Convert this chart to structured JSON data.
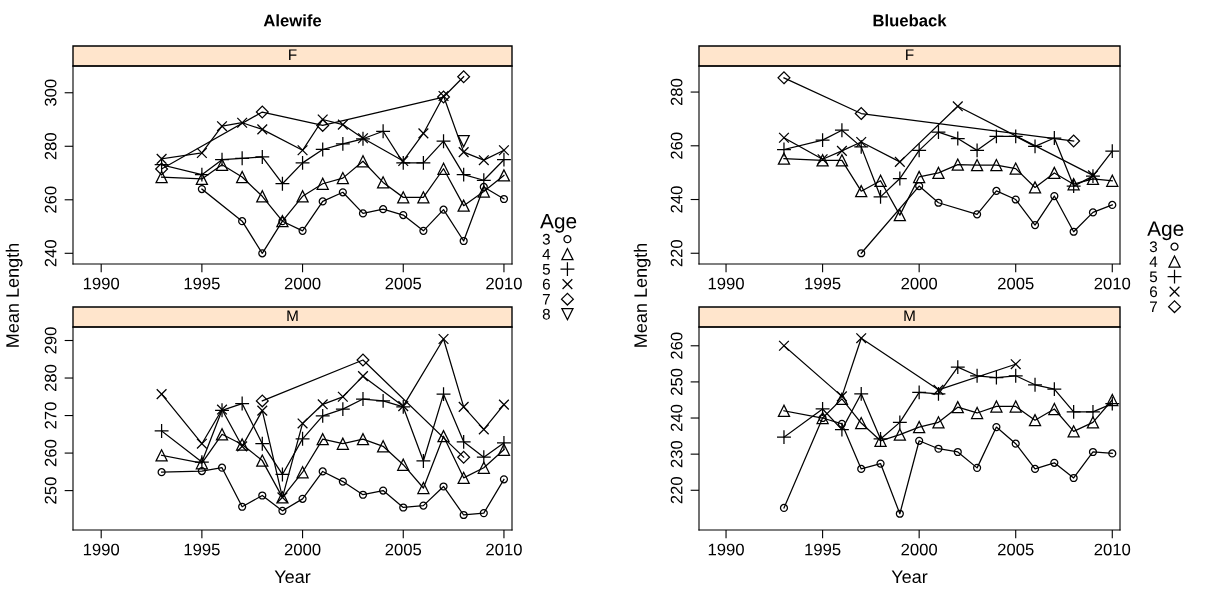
{
  "chart_data": [
    {
      "type": "line",
      "title": "Alewife",
      "subtitle": "F",
      "ylabel": "Mean Length",
      "legend_title": "Age",
      "legend": "right",
      "xlim": [
        1988.6,
        2010.4
      ],
      "xticks": [
        1990,
        1995,
        2000,
        2005,
        2010
      ],
      "ylim": [
        236,
        310
      ],
      "yticks": [
        240,
        260,
        280,
        300
      ],
      "grid": false,
      "series": [
        {
          "name": "3",
          "color": "#000000",
          "marker": "circle",
          "x": [
            1995,
            1997,
            1998,
            1999,
            2000,
            2001,
            2002,
            2003,
            2004,
            2005,
            2006,
            2007,
            2008,
            2009,
            2010
          ],
          "values": [
            264,
            252,
            240,
            252,
            248.4,
            259.4,
            262.8,
            254.9,
            256.5,
            254.3,
            248.4,
            256.3,
            244.6,
            264.8,
            260.3
          ]
        },
        {
          "name": "4",
          "color": "#000000",
          "marker": "triangle",
          "x": [
            1993,
            1995,
            1996,
            1997,
            1998,
            1999,
            2000,
            2001,
            2002,
            2003,
            2004,
            2005,
            2006,
            2007,
            2008,
            2009,
            2010
          ],
          "values": [
            268.5,
            267.8,
            273.1,
            268.5,
            261.3,
            252,
            261.3,
            266,
            268.1,
            274.4,
            266.5,
            260.9,
            260.9,
            271.6,
            257.8,
            263.1,
            269.1
          ]
        },
        {
          "name": "5",
          "color": "#000000",
          "marker": "plus",
          "x": [
            1993,
            1995,
            1996,
            1997,
            1998,
            1999,
            2000,
            2001,
            2002,
            2003,
            2004,
            2005,
            2006,
            2007,
            2008,
            2009,
            2010
          ],
          "values": [
            273.1,
            269.4,
            275,
            275.5,
            276,
            266,
            273.8,
            278.8,
            280.9,
            282.8,
            285.6,
            273.8,
            273.8,
            281.9,
            269.4,
            267.3,
            275
          ]
        },
        {
          "name": "6",
          "color": "#000000",
          "marker": "cross",
          "x": [
            1993,
            1995,
            1996,
            1997,
            1998,
            2000,
            2001,
            2002,
            2003,
            2005,
            2006,
            2007,
            2008,
            2009,
            2010
          ],
          "values": [
            275.3,
            277.5,
            287.5,
            288.8,
            286.3,
            278.5,
            290,
            288.1,
            283,
            274.5,
            284.8,
            298.8,
            277.8,
            274.8,
            278.5
          ]
        },
        {
          "name": "7",
          "color": "#000000",
          "marker": "diamond",
          "x": [
            1993,
            1998,
            2001,
            2007,
            2008
          ],
          "values": [
            271.5,
            292.8,
            287.8,
            298.4,
            306
          ]
        },
        {
          "name": "8",
          "color": "#000000",
          "marker": "triangle-down",
          "x": [
            2008
          ],
          "values": [
            281.9
          ]
        }
      ]
    },
    {
      "type": "line",
      "title": "Blueback",
      "subtitle": "F",
      "ylabel": "Mean Length",
      "legend_title": "Age",
      "legend": "right",
      "xlim": [
        1988.6,
        2010.4
      ],
      "xticks": [
        1990,
        1995,
        2000,
        2005,
        2010
      ],
      "ylim": [
        216,
        289.7
      ],
      "yticks": [
        220,
        240,
        260,
        280
      ],
      "grid": false,
      "series": [
        {
          "name": "3",
          "color": "#000000",
          "marker": "circle",
          "x": [
            1997,
            2000,
            2001,
            2003,
            2004,
            2005,
            2006,
            2007,
            2008,
            2009,
            2010
          ],
          "values": [
            220,
            245,
            238.8,
            234.5,
            243.2,
            240,
            230.5,
            241.3,
            228,
            235.2,
            238
          ]
        },
        {
          "name": "4",
          "color": "#000000",
          "marker": "triangle",
          "x": [
            1993,
            1995,
            1996,
            1997,
            1998,
            1999,
            2000,
            2001,
            2002,
            2003,
            2004,
            2005,
            2006,
            2007,
            2008,
            2009,
            2010
          ],
          "values": [
            255.2,
            254.6,
            254.6,
            243.1,
            247,
            234.2,
            248.4,
            249.9,
            253,
            252.8,
            252.8,
            251.5,
            244.5,
            249.9,
            245.7,
            247.7,
            247
          ]
        },
        {
          "name": "5",
          "color": "#000000",
          "marker": "plus",
          "x": [
            1993,
            1995,
            1996,
            1997,
            1998,
            1999,
            2000,
            2001,
            2002,
            2003,
            2004,
            2005,
            2006,
            2007,
            2008,
            2009,
            2010
          ],
          "values": [
            258.6,
            262.1,
            265.8,
            259.6,
            241,
            247.8,
            258.3,
            265.1,
            262.7,
            258.3,
            263.5,
            263.5,
            259.8,
            262.9,
            245,
            248.7,
            258
          ]
        },
        {
          "name": "6",
          "color": "#000000",
          "marker": "cross",
          "x": [
            1993,
            1995,
            1996,
            1997,
            1999,
            2002,
            2009
          ],
          "values": [
            263,
            255,
            258.1,
            261.4,
            254,
            274.7,
            249
          ]
        },
        {
          "name": "7",
          "color": "#000000",
          "marker": "diamond",
          "x": [
            1993,
            1997,
            2008
          ],
          "values": [
            285.3,
            272,
            261.8
          ]
        }
      ]
    },
    {
      "type": "line",
      "subtitle": "M",
      "xlabel": "Year",
      "xlim": [
        1988.6,
        2010.4
      ],
      "xticks": [
        1990,
        1995,
        2000,
        2005,
        2010
      ],
      "ylim": [
        239.5,
        293.6
      ],
      "yticks": [
        250,
        260,
        270,
        280,
        290
      ],
      "grid": false,
      "series": [
        {
          "name": "3",
          "color": "#000000",
          "marker": "circle",
          "x": [
            1993,
            1995,
            1996,
            1997,
            1998,
            1999,
            2000,
            2001,
            2002,
            2003,
            2004,
            2005,
            2006,
            2007,
            2008,
            2009,
            2010
          ],
          "values": [
            254.9,
            255.2,
            256.1,
            245.7,
            248.7,
            244.6,
            247.8,
            255.1,
            252.4,
            248.9,
            250,
            245.5,
            246,
            251.1,
            243.5,
            244,
            253
          ]
        },
        {
          "name": "4",
          "color": "#000000",
          "marker": "triangle",
          "x": [
            1993,
            1995,
            1996,
            1997,
            1998,
            1999,
            2000,
            2001,
            2002,
            2003,
            2004,
            2005,
            2006,
            2007,
            2008,
            2009,
            2010
          ],
          "values": [
            259.4,
            257.3,
            265,
            262.3,
            258,
            248.2,
            254.9,
            263.7,
            262.5,
            263.7,
            261.8,
            256.9,
            250.7,
            264.5,
            253.4,
            256.1,
            260.9
          ]
        },
        {
          "name": "5",
          "color": "#000000",
          "marker": "plus",
          "x": [
            1993,
            1995,
            1996,
            1997,
            1998,
            1999,
            2000,
            2001,
            2002,
            2003,
            2004,
            2005,
            2006,
            2007,
            2008,
            2009,
            2010
          ],
          "values": [
            265.9,
            257.6,
            271.4,
            273.2,
            262.5,
            254.3,
            263.8,
            269.9,
            271.7,
            274.4,
            273.9,
            272.3,
            257.9,
            275.7,
            263,
            258.9,
            262.7
          ]
        },
        {
          "name": "6",
          "color": "#000000",
          "marker": "cross",
          "x": [
            1993,
            1995,
            1996,
            1997,
            1998,
            1999,
            2000,
            2001,
            2002,
            2003,
            2005,
            2007,
            2008,
            2009,
            2010
          ],
          "values": [
            275.7,
            262.5,
            271.6,
            261.8,
            271.3,
            248.2,
            267.9,
            273,
            275,
            280.5,
            272.5,
            290.4,
            272.3,
            266.3,
            272.9
          ]
        },
        {
          "name": "7",
          "color": "#000000",
          "marker": "diamond",
          "x": [
            1998,
            2003,
            2008
          ],
          "values": [
            273.9,
            284.8,
            258.9
          ]
        }
      ]
    },
    {
      "type": "line",
      "subtitle": "M",
      "xlabel": "Year",
      "xlim": [
        1988.6,
        2010.4
      ],
      "xticks": [
        1990,
        1995,
        2000,
        2005,
        2010
      ],
      "ylim": [
        209,
        265.2
      ],
      "yticks": [
        220,
        230,
        240,
        250,
        260
      ],
      "grid": false,
      "series": [
        {
          "name": "3",
          "color": "#000000",
          "marker": "circle",
          "x": [
            1993,
            1995,
            1996,
            1997,
            1998,
            1999,
            2000,
            2001,
            2002,
            2003,
            2004,
            2005,
            2006,
            2007,
            2008,
            2009,
            2010
          ],
          "values": [
            215.1,
            240,
            238.4,
            225.9,
            227.4,
            213.5,
            233.7,
            231.5,
            230.6,
            226.2,
            237.5,
            232.9,
            225.9,
            227.6,
            223.4,
            230.6,
            230.2
          ]
        },
        {
          "name": "4",
          "color": "#000000",
          "marker": "triangle",
          "x": [
            1993,
            1995,
            1996,
            1997,
            1998,
            1999,
            2000,
            2001,
            2002,
            2003,
            2004,
            2005,
            2006,
            2007,
            2008,
            2009,
            2010
          ],
          "values": [
            242,
            240,
            245.3,
            238.6,
            233.7,
            235.4,
            237.5,
            238.8,
            243,
            241.4,
            243.2,
            243.2,
            239.4,
            242.5,
            236.3,
            238.8,
            245
          ]
        },
        {
          "name": "5",
          "color": "#000000",
          "marker": "plus",
          "x": [
            1993,
            1995,
            1996,
            1997,
            1998,
            1999,
            2000,
            2001,
            2002,
            2003,
            2004,
            2005,
            2006,
            2007,
            2008,
            2009,
            2010
          ],
          "values": [
            234.7,
            242.5,
            236.8,
            246.7,
            234.2,
            238.8,
            247.1,
            246.7,
            254.1,
            251.7,
            251.2,
            251.7,
            249.2,
            248,
            241.7,
            241.7,
            244
          ]
        },
        {
          "name": "6",
          "color": "#000000",
          "marker": "cross",
          "x": [
            1993,
            1996,
            1997,
            2001,
            2005
          ],
          "values": [
            260,
            246,
            262.1,
            247.8,
            254.9
          ]
        }
      ]
    }
  ]
}
